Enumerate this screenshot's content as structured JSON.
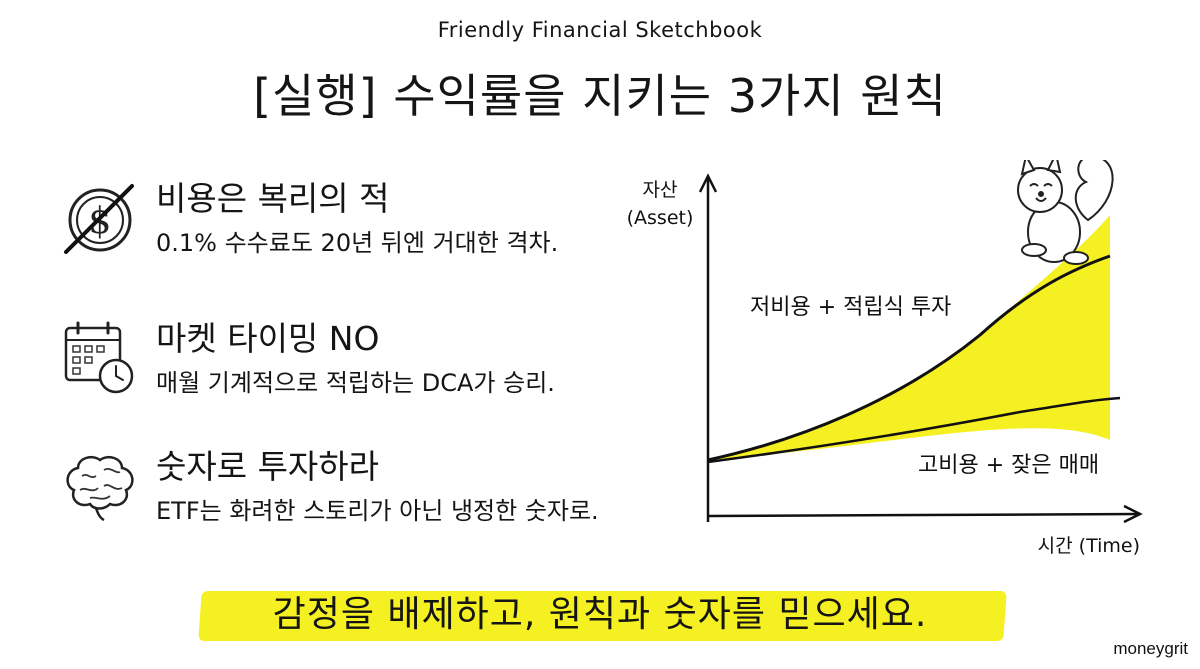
{
  "header": {
    "subtitle": "Friendly Financial Sketchbook",
    "title": "[실행] 수익률을 지키는 3가지 원칙"
  },
  "principles": [
    {
      "icon": "crossed-out-dollar-coin-icon",
      "heading": "비용은 복리의 적",
      "description": "0.1% 수수료도 20년 뒤엔 거대한 격차."
    },
    {
      "icon": "calendar-clock-icon",
      "heading": "마켓 타이밍 NO",
      "description": "매월 기계적으로 적립하는 DCA가 승리."
    },
    {
      "icon": "brain-icon",
      "heading": "숫자로 투자하라",
      "description": "ETF는 화려한 스토리가 아닌 냉정한 숫자로."
    }
  ],
  "chart_data": {
    "type": "area",
    "ylabel": [
      "자산",
      "(Asset)"
    ],
    "xlabel": "시간 (Time)",
    "series": [
      {
        "name": "저비용 + 적립식 투자",
        "shape": "exponential-growth",
        "fill": "#f5f022"
      },
      {
        "name": "고비용 + 잦은 매매",
        "shape": "slow-linear-growth"
      }
    ],
    "mascot": "squirrel-icon"
  },
  "footer": {
    "banner": "감정을 배제하고, 원칙과 숫자를 믿으세요.",
    "highlight_color": "#f5f022",
    "brand": "moneygrit"
  }
}
